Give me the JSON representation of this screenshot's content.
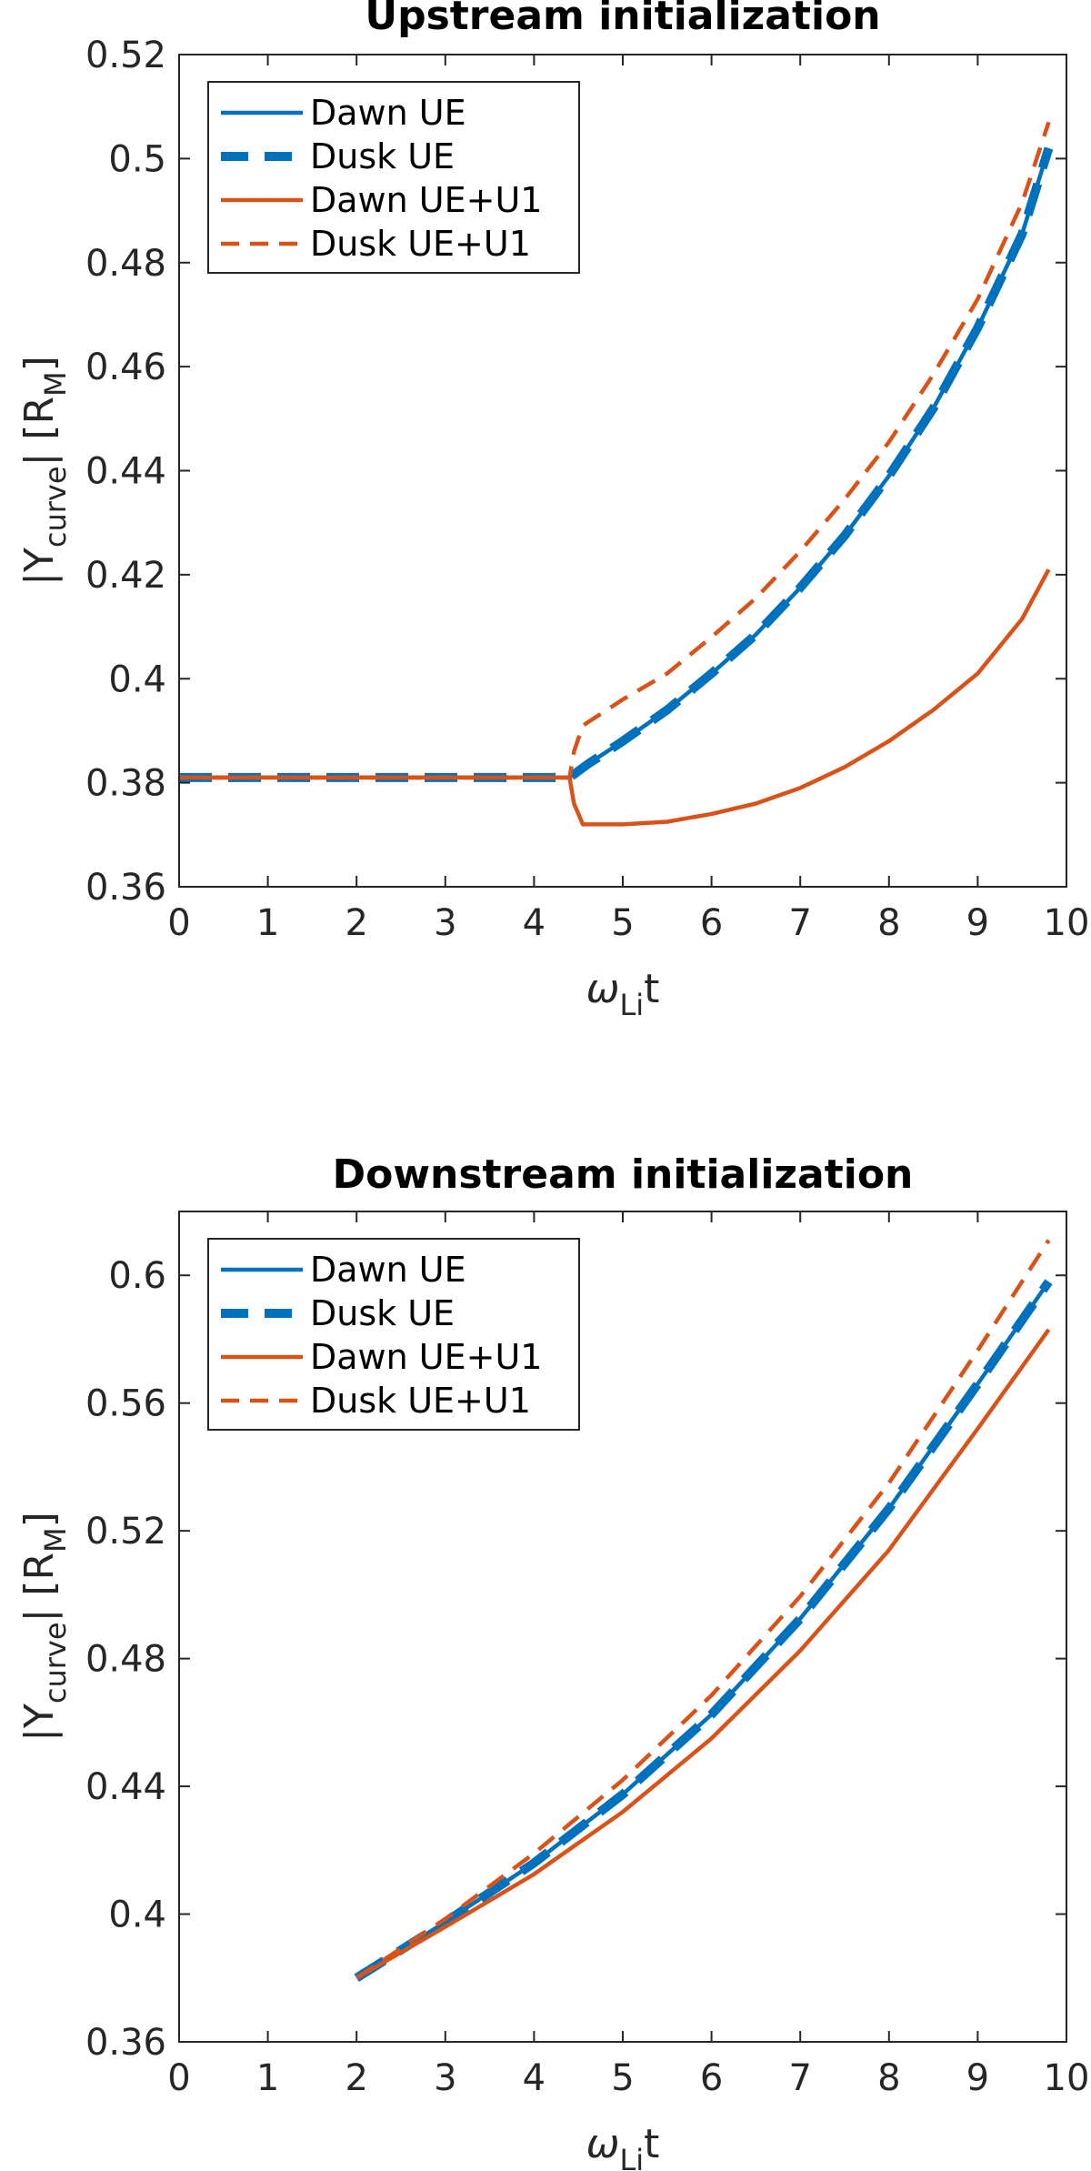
{
  "colors": {
    "ue": "#0072BD",
    "ue_u1": "#D95319",
    "axis": "#262626",
    "text": "#000000"
  },
  "chart_data": [
    {
      "type": "line",
      "title": "Upstream initialization",
      "xlabel": {
        "main": "ω",
        "sub": "Li",
        "suffix": "t"
      },
      "ylabel": {
        "prefix": "|Y",
        "sub1": "curve",
        "middle": "| [R",
        "sub2": "M",
        "suffix": "]"
      },
      "xlim": [
        0,
        10
      ],
      "ylim": [
        0.36,
        0.52
      ],
      "xticks": [
        0,
        1,
        2,
        3,
        4,
        5,
        6,
        7,
        8,
        9,
        10
      ],
      "xtick_labels": [
        "0",
        "1",
        "2",
        "3",
        "4",
        "5",
        "6",
        "7",
        "8",
        "9",
        "10"
      ],
      "yticks": [
        0.36,
        0.38,
        0.4,
        0.42,
        0.44,
        0.46,
        0.48,
        0.5,
        0.52
      ],
      "ytick_labels": [
        "0.36",
        "0.38",
        "0.4",
        "0.42",
        "0.44",
        "0.46",
        "0.48",
        "0.5",
        "0.52"
      ],
      "legend_position": "top-left",
      "series": [
        {
          "name": "Dawn UE",
          "color": "#0072BD",
          "style": "solid",
          "x": [
            0,
            4.4,
            4.6,
            5,
            5.5,
            6,
            6.5,
            7,
            7.5,
            8,
            8.5,
            9,
            9.5,
            9.8
          ],
          "y": [
            0.381,
            0.381,
            0.3835,
            0.388,
            0.394,
            0.401,
            0.4085,
            0.4175,
            0.4275,
            0.439,
            0.452,
            0.4675,
            0.4855,
            0.502
          ]
        },
        {
          "name": "Dusk UE",
          "color": "#0072BD",
          "style": "thick-dash",
          "x": [
            0,
            4.4,
            4.6,
            5,
            5.5,
            6,
            6.5,
            7,
            7.5,
            8,
            8.5,
            9,
            9.5,
            9.8
          ],
          "y": [
            0.381,
            0.381,
            0.3835,
            0.388,
            0.394,
            0.401,
            0.4085,
            0.4175,
            0.4275,
            0.439,
            0.452,
            0.4675,
            0.4855,
            0.502
          ]
        },
        {
          "name": "Dawn UE+U1",
          "color": "#D95319",
          "style": "solid",
          "x": [
            0,
            4.4,
            4.45,
            4.55,
            5,
            5.5,
            6,
            6.5,
            7,
            7.5,
            8,
            8.5,
            9,
            9.5,
            9.8
          ],
          "y": [
            0.381,
            0.381,
            0.376,
            0.372,
            0.372,
            0.3725,
            0.374,
            0.376,
            0.379,
            0.383,
            0.388,
            0.394,
            0.401,
            0.4115,
            0.421
          ]
        },
        {
          "name": "Dusk UE+U1",
          "color": "#D95319",
          "style": "dash",
          "x": [
            0,
            4.4,
            4.45,
            4.55,
            5,
            5.5,
            6,
            6.5,
            7,
            7.5,
            8,
            8.5,
            9,
            9.5,
            9.8
          ],
          "y": [
            0.381,
            0.381,
            0.386,
            0.391,
            0.396,
            0.401,
            0.408,
            0.4155,
            0.4245,
            0.4345,
            0.4455,
            0.4585,
            0.473,
            0.4915,
            0.507
          ]
        }
      ]
    },
    {
      "type": "line",
      "title": "Downstream initialization",
      "xlabel": {
        "main": "ω",
        "sub": "Li",
        "suffix": "t"
      },
      "ylabel": {
        "prefix": "|Y",
        "sub1": "curve",
        "middle": "| [R",
        "sub2": "M",
        "suffix": "]"
      },
      "xlim": [
        0,
        10
      ],
      "ylim": [
        0.36,
        0.62
      ],
      "xticks": [
        0,
        1,
        2,
        3,
        4,
        5,
        6,
        7,
        8,
        9,
        10
      ],
      "xtick_labels": [
        "0",
        "1",
        "2",
        "3",
        "4",
        "5",
        "6",
        "7",
        "8",
        "9",
        "10"
      ],
      "yticks": [
        0.36,
        0.4,
        0.44,
        0.48,
        0.52,
        0.56,
        0.6
      ],
      "ytick_labels": [
        "0.36",
        "0.4",
        "0.44",
        "0.48",
        "0.52",
        "0.56",
        "0.6"
      ],
      "legend_position": "top-left",
      "series": [
        {
          "name": "Dawn UE",
          "color": "#0072BD",
          "style": "solid",
          "x": [
            2,
            3,
            4,
            5,
            6,
            7,
            8,
            9,
            9.8
          ],
          "y": [
            0.38,
            0.3975,
            0.416,
            0.4375,
            0.4625,
            0.4925,
            0.527,
            0.566,
            0.598
          ]
        },
        {
          "name": "Dusk UE",
          "color": "#0072BD",
          "style": "thick-dash",
          "x": [
            2,
            3,
            4,
            5,
            6,
            7,
            8,
            9,
            9.8
          ],
          "y": [
            0.38,
            0.3975,
            0.416,
            0.4375,
            0.4625,
            0.4925,
            0.527,
            0.566,
            0.598
          ]
        },
        {
          "name": "Dawn UE+U1",
          "color": "#D95319",
          "style": "solid",
          "x": [
            2,
            3,
            4,
            5,
            6,
            7,
            8,
            9,
            9.8
          ],
          "y": [
            0.38,
            0.396,
            0.4125,
            0.432,
            0.455,
            0.4825,
            0.514,
            0.552,
            0.583
          ]
        },
        {
          "name": "Dusk UE+U1",
          "color": "#D95319",
          "style": "dash",
          "x": [
            2,
            3,
            4,
            5,
            6,
            7,
            8,
            9,
            9.8
          ],
          "y": [
            0.38,
            0.3985,
            0.419,
            0.442,
            0.4685,
            0.4995,
            0.535,
            0.5765,
            0.611
          ]
        }
      ]
    }
  ]
}
